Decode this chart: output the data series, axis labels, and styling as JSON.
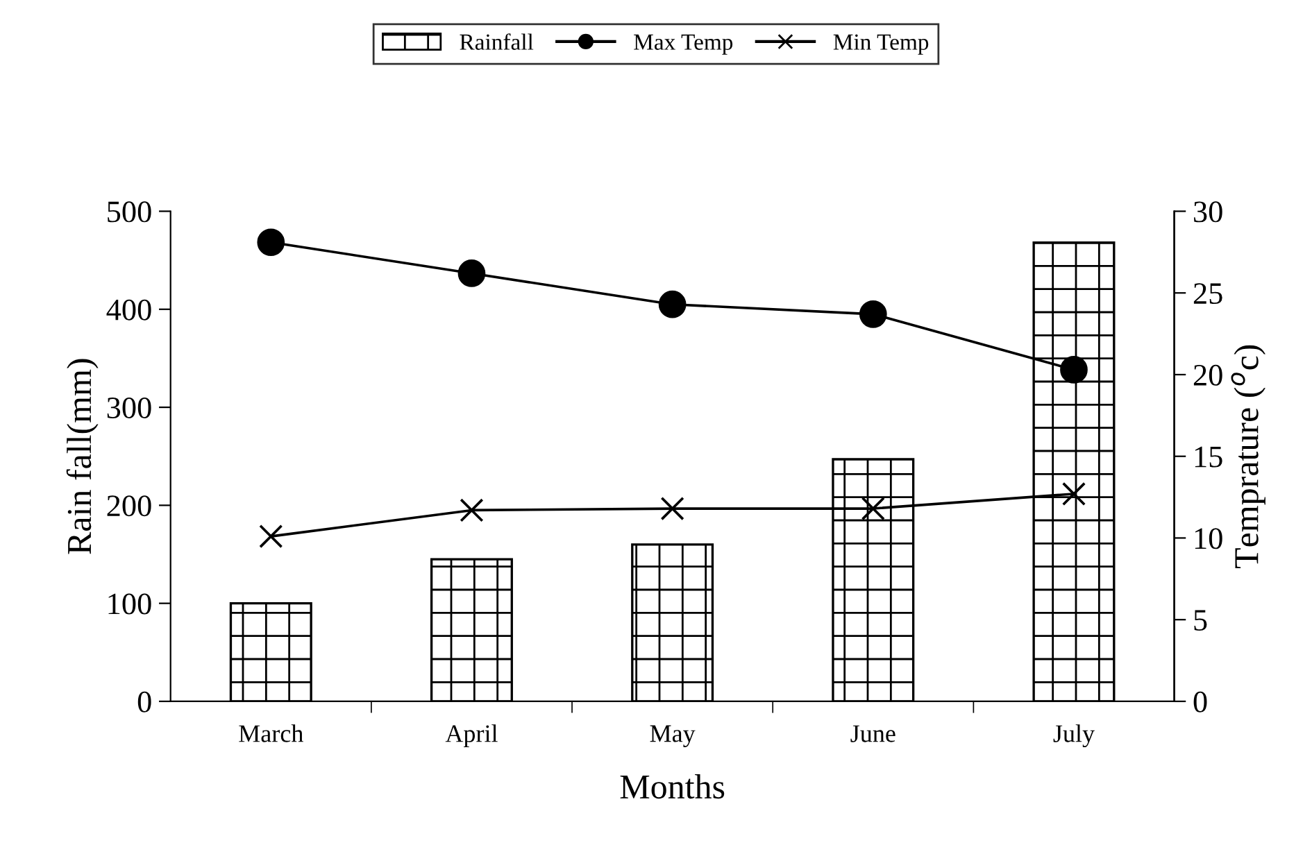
{
  "chart_data": {
    "type": "bar",
    "xlabel": "Months",
    "ylabel": "Rain fall(mm)",
    "y2label": "Temprature ($^{o}$c)",
    "categories": [
      "March",
      "April",
      "May",
      "June",
      "July"
    ],
    "series": [
      {
        "name": "Rainfall",
        "color": "#000000",
        "values": [
          100,
          145,
          160,
          247,
          468
        ]
      },
      {
        "name": "Max Temp",
        "type": "line",
        "axis": "y2",
        "color": "#000000",
        "marker": "circle",
        "values": [
          28.1,
          26.2,
          24.3,
          23.7,
          20.3
        ]
      },
      {
        "name": "Min Temp",
        "type": "line",
        "axis": "y2",
        "color": "#000000",
        "marker": "cross",
        "values": [
          10.1,
          11.7,
          11.8,
          11.8,
          12.7
        ]
      }
    ],
    "ylim": [
      0,
      500
    ],
    "yticks": [
      0,
      100,
      200,
      300,
      400,
      500
    ],
    "y2lim": [
      0,
      30
    ],
    "y2ticks": [
      0,
      5,
      10,
      15,
      20,
      25,
      30
    ],
    "grid": false,
    "legend": "top",
    "line_style": "solid"
  }
}
